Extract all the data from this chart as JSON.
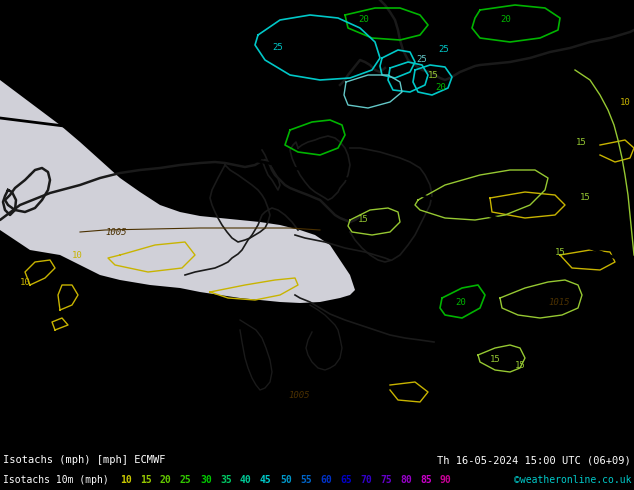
{
  "title_left": "Isotachs (mph) [mph] ECMWF",
  "title_right": "Th 16-05-2024 15:00 UTC (06+09)",
  "legend_label": "Isotachs 10m (mph)",
  "watermark": "©weatheronline.co.uk",
  "fig_width": 6.34,
  "fig_height": 4.9,
  "dpi": 100,
  "title_font_size": 7.5,
  "legend_font_size": 7,
  "legend_values": [
    10,
    15,
    20,
    25,
    30,
    35,
    40,
    45,
    50,
    55,
    60,
    65,
    70,
    75,
    80,
    85,
    90
  ],
  "legend_colors": [
    "#c8c800",
    "#96c800",
    "#64c800",
    "#32c800",
    "#00c800",
    "#00c864",
    "#00c896",
    "#00c8c8",
    "#0096c8",
    "#0064c8",
    "#0032c8",
    "#0000c8",
    "#3200c8",
    "#6400c8",
    "#9600c8",
    "#c800c8",
    "#c80096"
  ],
  "sea_color": "#d0d0d8",
  "land_color": "#b4f0a0",
  "land_color2": "#c8f0b0",
  "col_yellow": "#c8b400",
  "col_ygreen": "#96c832",
  "col_green": "#00b400",
  "col_cyan": "#00c8c8",
  "col_lcyan": "#64c8c8",
  "col_border": "#1a1a1a",
  "col_isobar": "#4a3000",
  "col_text_map": "#505050"
}
